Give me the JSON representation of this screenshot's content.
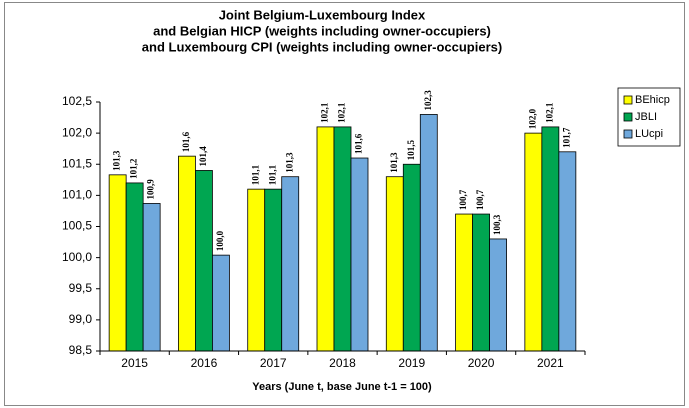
{
  "chart_data": {
    "type": "bar",
    "title": [
      "Joint Belgium-Luxembourg Index",
      "and Belgian HICP (weights including owner-occupiers)",
      "and Luxembourg CPI (weights including owner-occupiers)"
    ],
    "x_label": "Years  (June t, base June t-1 = 100)",
    "categories": [
      "2015",
      "2016",
      "2017",
      "2018",
      "2019",
      "2020",
      "2021"
    ],
    "series": [
      {
        "name": "BEhicp",
        "color": "#ffff00",
        "values": [
          101.33,
          101.63,
          101.1,
          102.1,
          101.3,
          100.7,
          102.0
        ],
        "value_labels": [
          "101,3",
          "101,6",
          "101,1",
          "102,1",
          "101,3",
          "100,7",
          "102,0"
        ]
      },
      {
        "name": "JBLI",
        "color": "#00a651",
        "values": [
          101.2,
          101.4,
          101.1,
          102.1,
          101.5,
          100.7,
          102.1
        ],
        "value_labels": [
          "101,2",
          "101,4",
          "101,1",
          "102,1",
          "101,5",
          "100,7",
          "102,1"
        ]
      },
      {
        "name": "LUcpi",
        "color": "#6fa8dc",
        "values": [
          100.87,
          100.04,
          101.3,
          101.6,
          102.3,
          100.3,
          101.7
        ],
        "value_labels": [
          "100,9",
          "100,0",
          "101,3",
          "101,6",
          "102,3",
          "100,3",
          "101,7"
        ]
      }
    ],
    "ylim": [
      98.5,
      102.5
    ],
    "yticks": [
      {
        "value": 98.5,
        "label": "98,5"
      },
      {
        "value": 99,
        "label": "99,0"
      },
      {
        "value": 99.5,
        "label": "99,5"
      },
      {
        "value": 100,
        "label": "100,0"
      },
      {
        "value": 100.5,
        "label": "100,5"
      },
      {
        "value": 101,
        "label": "101,0"
      },
      {
        "value": 101.5,
        "label": "101,5"
      },
      {
        "value": 102,
        "label": "102,0"
      },
      {
        "value": 102.5,
        "label": "102,5"
      }
    ],
    "grid": false,
    "legend": "right"
  }
}
